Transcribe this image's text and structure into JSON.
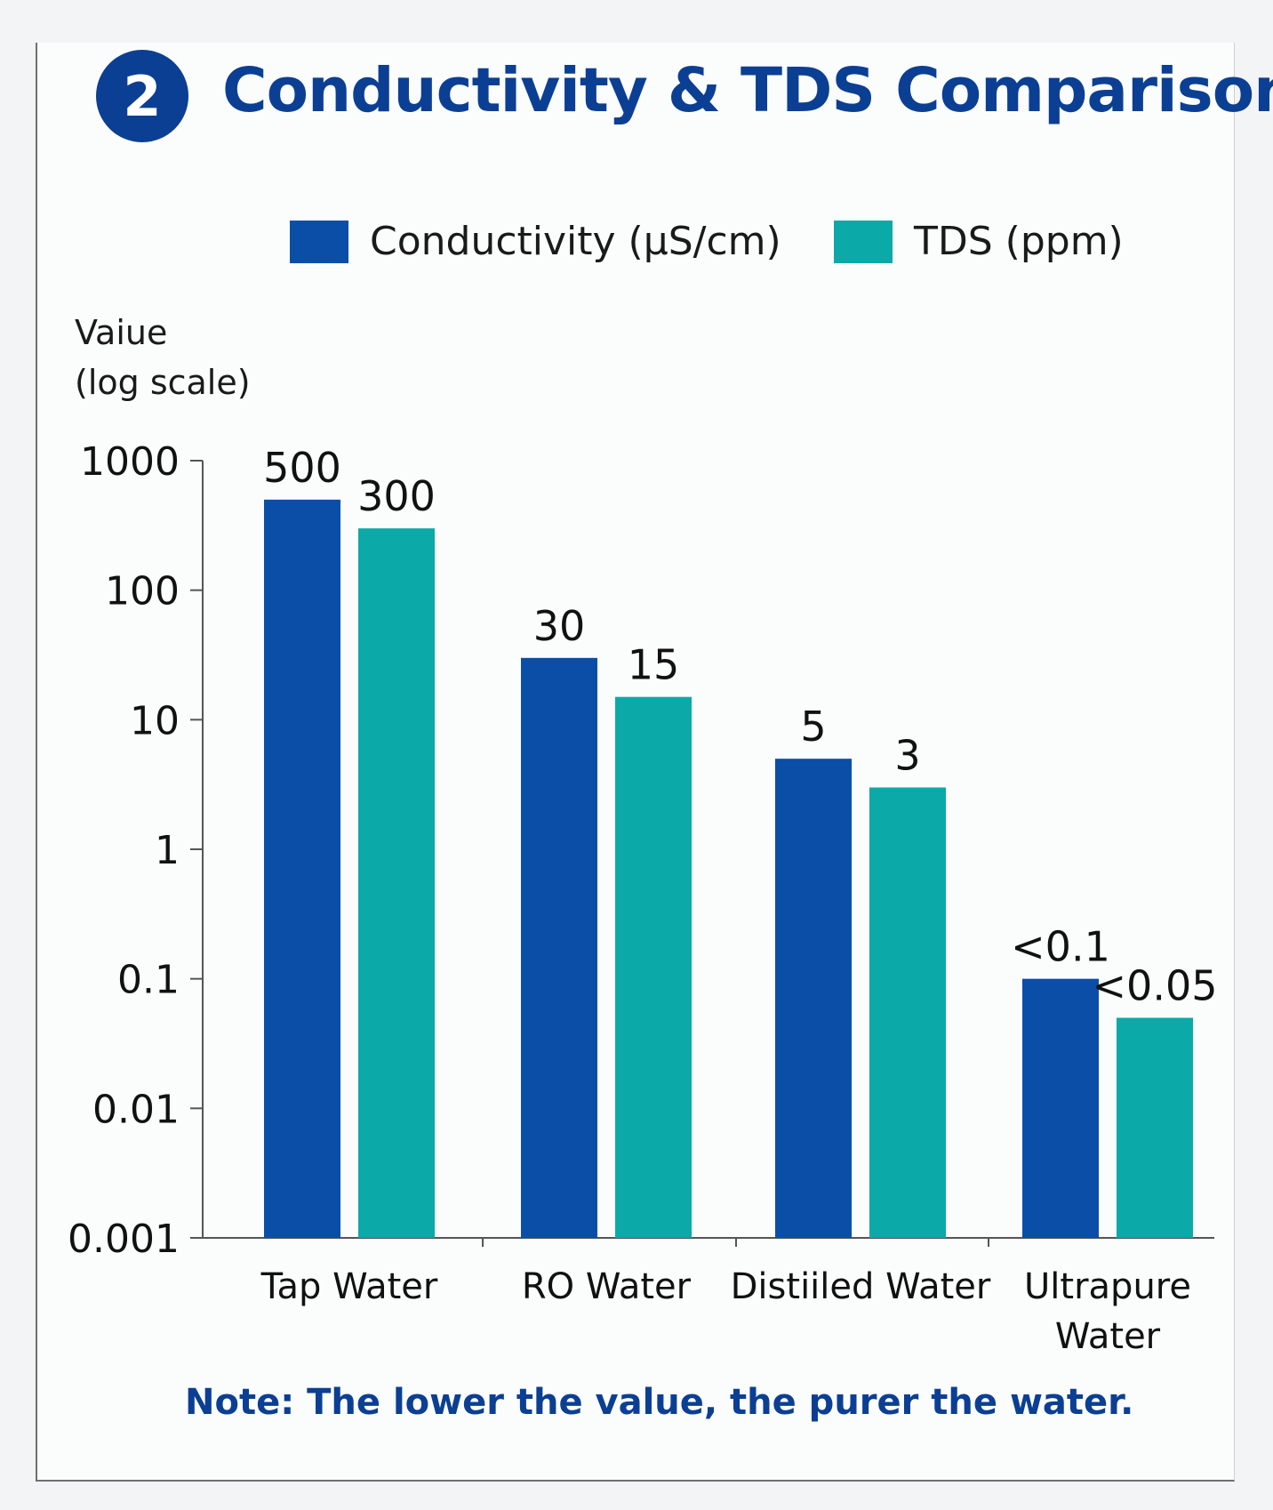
{
  "title": "Conductivity & TDS Comparison",
  "section_number": "2",
  "legend": [
    {
      "label": "Conductivity (µS/cm)",
      "color": "#0a4ea8"
    },
    {
      "label": "TDS (ppm)",
      "color": "#0ca9a9"
    }
  ],
  "yaxis_title_line1": "Vaiue",
  "yaxis_title_line2": "(log scale)",
  "note": "Note: The lower the value, the purer the water.",
  "chart_data": {
    "type": "bar",
    "yscale": "log",
    "ylim": [
      0.001,
      1000
    ],
    "yticks": [
      1000,
      100,
      10,
      1,
      0.1,
      0.01,
      0.001
    ],
    "ytick_labels": [
      "1000",
      "100",
      "10",
      "1",
      "0.1",
      "0.01",
      "0.001"
    ],
    "categories": [
      "Tap Water",
      "RO Water",
      "Distiiled Water",
      "Ultrapure Water"
    ],
    "series": [
      {
        "name": "Conductivity (µS/cm)",
        "color": "#0a4ea8",
        "values": [
          500,
          30,
          5,
          0.1
        ],
        "labels": [
          "500",
          "30",
          "5",
          "<0.1"
        ]
      },
      {
        "name": "TDS (ppm)",
        "color": "#0ca9a9",
        "values": [
          300,
          15,
          3,
          0.05
        ],
        "labels": [
          "300",
          "15",
          "3",
          "<0.05"
        ]
      }
    ],
    "xlabel": "",
    "ylabel": "Vaiue (log scale)",
    "legend_position": "top",
    "grid": false
  }
}
